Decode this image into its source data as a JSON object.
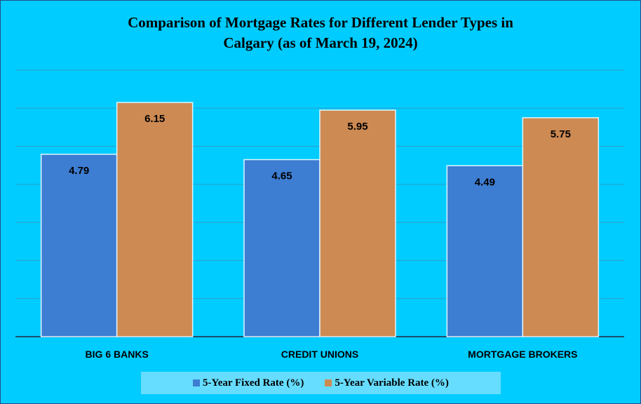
{
  "chart_data": {
    "type": "bar",
    "title_lines": [
      "Comparison of Mortgage Rates for Different Lender Types in",
      "Calgary (as of March 19, 2024)"
    ],
    "categories": [
      "BIG 6 BANKS",
      "CREDIT UNIONS",
      "MORTGAGE BROKERS"
    ],
    "series": [
      {
        "name": "5-Year Fixed Rate (%)",
        "values": [
          4.79,
          4.65,
          4.49
        ],
        "color": "#3d7dd2",
        "labels": [
          "4.79",
          "4.65",
          "4.49"
        ]
      },
      {
        "name": "5-Year Variable Rate (%)",
        "values": [
          6.15,
          5.95,
          5.75
        ],
        "color": "#cd8a52",
        "labels": [
          "6.15",
          "5.95",
          "5.75"
        ]
      }
    ],
    "ylim": [
      0,
      7
    ],
    "grid": true,
    "legend_position": "bottom",
    "xlabel": "",
    "ylabel": ""
  }
}
